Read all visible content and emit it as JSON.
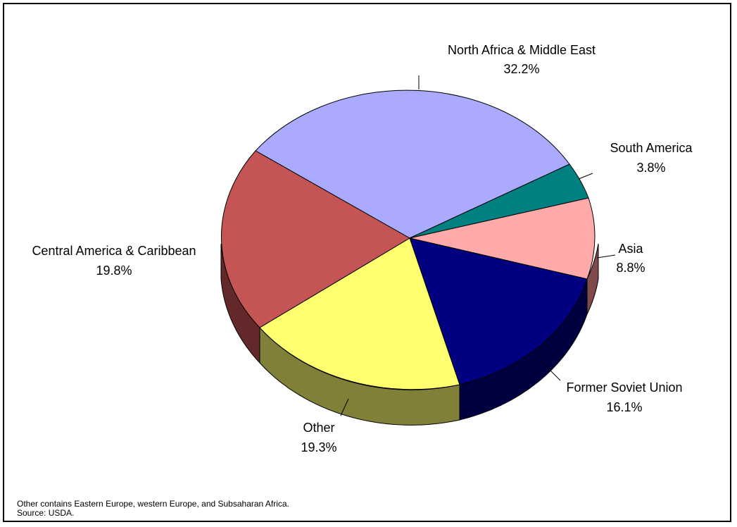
{
  "chart_data": {
    "type": "pie",
    "three_d": true,
    "slices": [
      {
        "label": "North Africa & Middle East",
        "value": 32.2,
        "display": "32.2%",
        "color": "#aaaaff"
      },
      {
        "label": "South America",
        "value": 3.8,
        "display": "3.8%",
        "color": "#008080"
      },
      {
        "label": "Asia",
        "value": 8.8,
        "display": "8.8%",
        "color": "#ffaaaa"
      },
      {
        "label": "Former Soviet Union",
        "value": 16.1,
        "display": "16.1%",
        "color": "#000080"
      },
      {
        "label": "Other",
        "value": 19.3,
        "display": "19.3%",
        "color": "#ffff70"
      },
      {
        "label": "Central America & Caribbean",
        "value": 19.8,
        "display": "19.8%",
        "color": "#c45554"
      }
    ],
    "title": "",
    "legend": "none"
  },
  "notes": {
    "line1": "Other contains Eastern Europe, western Europe, and Subsaharan Africa.",
    "line2": "Source: USDA."
  }
}
